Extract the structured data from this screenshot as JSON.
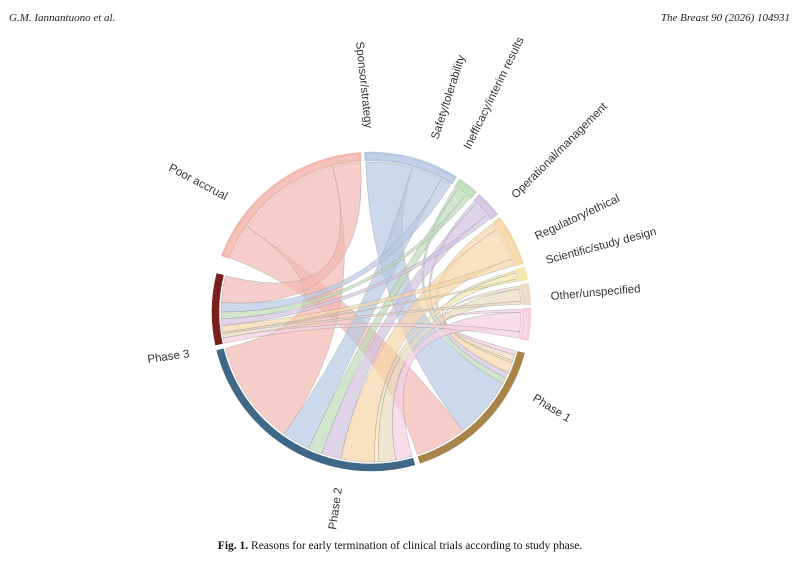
{
  "header": {
    "left": "G.M. Iannantuono et al.",
    "right": "The Breast 90 (2026) 104931"
  },
  "caption": {
    "label": "Fig. 1.",
    "text": "Reasons for early termination of clinical trials according to study phase."
  },
  "colors": {
    "poor_accrual": "#f2b8b0",
    "sponsor": "#b7c9e1",
    "safety": "#bcdbb8",
    "inefficacy": "#d3c2df",
    "operational": "#f6d6a6",
    "regulatory": "#f4e8a9",
    "scientific": "#ead8c1",
    "other": "#f4cfe1",
    "phase1": "#a8844a",
    "phase2": "#3f6788",
    "phase3": "#7b1e1e"
  },
  "chart_data": {
    "type": "chord",
    "title": "",
    "reasons": [
      {
        "name": "Poor accrual",
        "color": "#f2b8b0"
      },
      {
        "name": "Sponsor/strategy",
        "color": "#b7c9e1"
      },
      {
        "name": "Safety/tolerability",
        "color": "#bcdbb8"
      },
      {
        "name": "Inefficacy/interim results",
        "color": "#d3c2df"
      },
      {
        "name": "Operational/management",
        "color": "#f6d6a6"
      },
      {
        "name": "Regulatory/ethical",
        "color": "#f4e8a9"
      },
      {
        "name": "Scientific/study design",
        "color": "#ead8c1"
      },
      {
        "name": "Other/unspecified",
        "color": "#f4cfe1"
      }
    ],
    "phases": [
      {
        "name": "Phase 1",
        "color": "#a8844a"
      },
      {
        "name": "Phase 2",
        "color": "#3f6788"
      },
      {
        "name": "Phase 3",
        "color": "#7b1e1e"
      }
    ],
    "flows": {
      "Poor accrual": {
        "Phase 1": 2.5,
        "Phase 2": 7.5,
        "Phase 3": 2.0
      },
      "Sponsor/strategy": {
        "Phase 1": 3.0,
        "Phase 2": 2.0,
        "Phase 3": 0.7
      },
      "Safety/tolerability": {
        "Phase 1": 0.3,
        "Phase 2": 1.0,
        "Phase 3": 0.5
      },
      "Inefficacy/interim results": {
        "Phase 1": 0.3,
        "Phase 2": 1.4,
        "Phase 3": 0.5
      },
      "Operational/management": {
        "Phase 1": 0.5,
        "Phase 2": 2.4,
        "Phase 3": 0.5
      },
      "Regulatory/ethical": {
        "Phase 1": 0.1,
        "Phase 2": 0.3,
        "Phase 3": 0.1
      },
      "Scientific/study design": {
        "Phase 1": 0.3,
        "Phase 2": 1.2,
        "Phase 3": 0.3
      },
      "Other/unspecified": {
        "Phase 1": 0.2,
        "Phase 2": 1.2,
        "Phase 3": 0.4
      }
    }
  }
}
